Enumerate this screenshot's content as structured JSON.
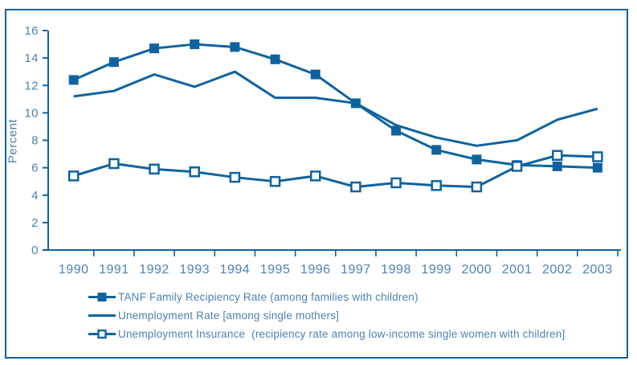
{
  "figure": {
    "accent_color": "#0e639f",
    "text_color": "#4d81b5",
    "background_color": "#ffffff"
  },
  "chart_data": {
    "type": "line",
    "title": "",
    "xlabel": "",
    "ylabel": "Percent",
    "ylim": [
      0,
      16
    ],
    "yticks": [
      0,
      2,
      4,
      6,
      8,
      10,
      12,
      14,
      16
    ],
    "grid": false,
    "legend_position": "bottom-left",
    "categories": [
      "1990",
      "1991",
      "1992",
      "1993",
      "1994",
      "1995",
      "1996",
      "1997",
      "1998",
      "1999",
      "2000",
      "2001",
      "2002",
      "2003"
    ],
    "series": [
      {
        "name": "TANF Family Recipiency Rate (among families with children)",
        "marker": "filled-square",
        "values": [
          12.4,
          13.7,
          14.7,
          15.0,
          14.8,
          13.9,
          12.8,
          10.7,
          8.7,
          7.3,
          6.6,
          6.2,
          6.1,
          6.0
        ]
      },
      {
        "name": "Unemployment Rate [among single mothers]",
        "marker": "none",
        "values": [
          11.2,
          11.6,
          12.8,
          11.9,
          13.0,
          11.1,
          11.1,
          10.7,
          9.1,
          8.2,
          7.6,
          8.0,
          9.5,
          10.3
        ]
      },
      {
        "name": "Unemployment Insurance  (recipiency rate among low-income single women with children]",
        "marker": "open-square",
        "values": [
          5.4,
          6.3,
          5.9,
          5.7,
          5.3,
          5.0,
          5.4,
          4.6,
          4.9,
          4.7,
          4.6,
          6.1,
          6.9,
          6.8
        ]
      }
    ]
  }
}
